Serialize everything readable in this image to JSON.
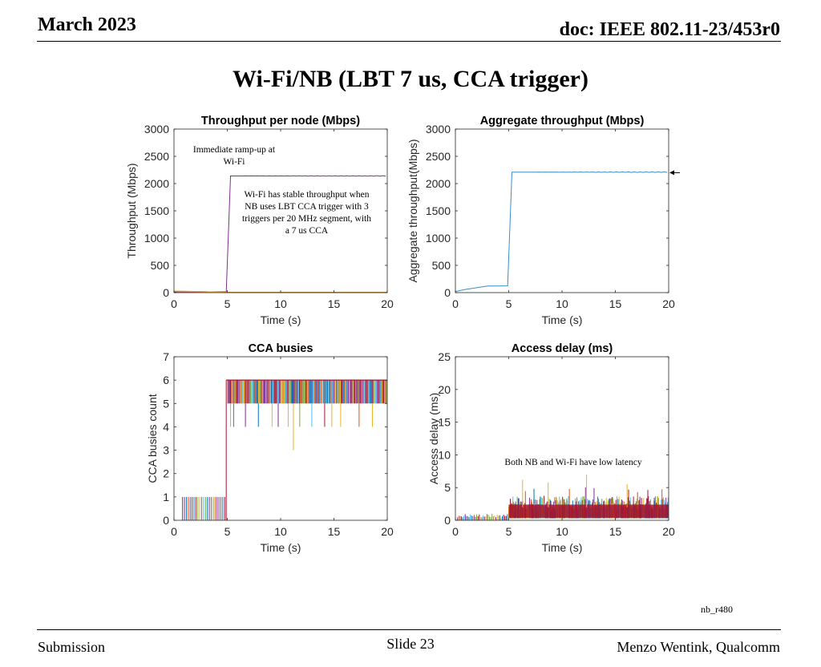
{
  "header": {
    "date": "March 2023",
    "doc": "doc: IEEE 802.11-23/453r0"
  },
  "slide_title": "Wi-Fi/NB (LBT 7 us, CCA trigger)",
  "footer": {
    "left": "Submission",
    "center": "Slide 23",
    "right": "Menzo Wentink, Qualcomm"
  },
  "corner_code": "nb_r480",
  "annotations": {
    "ramp": "Immediate ramp-up at Wi-Fi",
    "stable": "Wi-Fi has stable throughput when NB uses LBT CCA trigger with 3 triggers per 20 MHz segment, with a 7 us CCA",
    "latency": "Both NB and Wi-Fi have low latency"
  },
  "colors": {
    "purple": "#7e2f8e",
    "blue": "#0072bd",
    "orange": "#d95319",
    "yellow": "#edb120",
    "green": "#77ac30",
    "cyan": "#4dbeee",
    "red": "#a2142f",
    "aggregate": "#3a8fc4"
  },
  "chart_data": [
    {
      "type": "line",
      "title": "Throughput per node (Mbps)",
      "xlabel": "Time (s)",
      "ylabel": "Throughput (Mbps)",
      "xlim": [
        0,
        20
      ],
      "ylim": [
        0,
        3000
      ],
      "xticks": [
        0,
        5,
        10,
        15,
        20
      ],
      "yticks": [
        0,
        500,
        1000,
        1500,
        2000,
        2500,
        3000
      ],
      "series": [
        {
          "color": "#7e2f8e",
          "x": [
            0,
            3,
            4.9,
            5.3,
            6,
            8,
            10,
            12,
            14,
            16,
            18,
            20
          ],
          "y": [
            15,
            15,
            15,
            2130,
            2145,
            2130,
            2150,
            2130,
            2145,
            2135,
            2150,
            2140
          ]
        },
        {
          "color": "#0072bd",
          "x": [
            0,
            2.5,
            5,
            20
          ],
          "y": [
            25,
            20,
            5,
            5
          ]
        },
        {
          "color": "#d95319",
          "x": [
            0,
            2.5,
            5,
            20
          ],
          "y": [
            20,
            15,
            5,
            5
          ]
        },
        {
          "color": "#edb120",
          "x": [
            0,
            2.5,
            5,
            20
          ],
          "y": [
            30,
            20,
            5,
            5
          ]
        }
      ]
    },
    {
      "type": "line",
      "title": "Aggregate throughput (Mbps)",
      "xlabel": "Time (s)",
      "ylabel": "Aggregate throughput(Mbps)",
      "xlim": [
        0,
        20
      ],
      "ylim": [
        0,
        3000
      ],
      "xticks": [
        0,
        5,
        10,
        15,
        20
      ],
      "yticks": [
        0,
        500,
        1000,
        1500,
        2000,
        2500,
        3000
      ],
      "series": [
        {
          "color": "#3a8fc4",
          "x": [
            0,
            1,
            2,
            3,
            4,
            4.9,
            5.3,
            6,
            8,
            10,
            12,
            14,
            16,
            18,
            20
          ],
          "y": [
            20,
            60,
            90,
            120,
            120,
            125,
            2200,
            2220,
            2210,
            2220,
            2210,
            2220,
            2210,
            2220,
            2210
          ]
        }
      ]
    },
    {
      "type": "bar",
      "title": "CCA busies",
      "xlabel": "Time (s)",
      "ylabel": "CCA busies count",
      "xlim": [
        0,
        20
      ],
      "ylim": [
        0,
        7
      ],
      "xticks": [
        0,
        5,
        10,
        15,
        20
      ],
      "yticks": [
        0,
        1,
        2,
        3,
        4,
        5,
        6,
        7
      ],
      "dips": [
        {
          "x": 11.2,
          "y": 3
        },
        {
          "x": 5.3,
          "y": 4
        },
        {
          "x": 9.2,
          "y": 4
        },
        {
          "x": 14.8,
          "y": 4
        }
      ],
      "levels": {
        "before_5s": 1,
        "after_5s": 6
      }
    },
    {
      "type": "bar",
      "title": "Access delay (ms)",
      "xlabel": "Time (s)",
      "ylabel": "Access delay (ms)",
      "xlim": [
        0,
        20
      ],
      "ylim": [
        0,
        25
      ],
      "xticks": [
        0,
        5,
        10,
        15,
        20
      ],
      "yticks": [
        0,
        5,
        10,
        15,
        20,
        25
      ],
      "peaks": [
        {
          "x": 12.3,
          "y": 7
        },
        {
          "x": 6.3,
          "y": 6.2
        },
        {
          "x": 8.7,
          "y": 5.8
        },
        {
          "x": 16.1,
          "y": 5.5
        }
      ],
      "levels": {
        "before_5s": 0.8,
        "after_5s": 2.5
      }
    }
  ]
}
